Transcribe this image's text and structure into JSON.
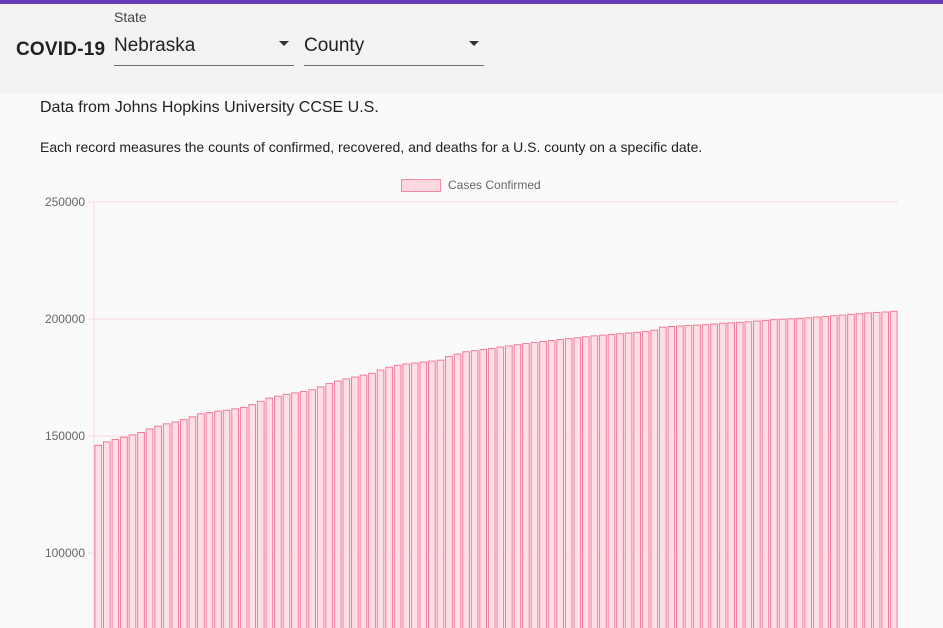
{
  "app": {
    "title": "COVID-19"
  },
  "filters": {
    "state": {
      "label": "State",
      "value": "Nebraska"
    },
    "county": {
      "value": "County"
    }
  },
  "content": {
    "source": "Data from Johns Hopkins University CCSE U.S.",
    "description": "Each record measures the counts of confirmed, recovered, and deaths for a U.S. county on a specific date."
  },
  "colors": {
    "accent": "#673ab7",
    "bar_fill": "#ffdfe5",
    "bar_stroke": "#f07b97",
    "grid": "#f8d8e0"
  },
  "chart_data": {
    "type": "bar",
    "legend": [
      "Cases Confirmed"
    ],
    "legend_position": "top-center",
    "grid": true,
    "y_ticks": [
      250000,
      200000,
      150000,
      100000
    ],
    "ylim": [
      70000,
      250000
    ],
    "series": [
      {
        "name": "Cases Confirmed",
        "values": [
          146000,
          147500,
          148500,
          149500,
          150500,
          151500,
          153000,
          154200,
          155200,
          156000,
          157000,
          158200,
          159500,
          160000,
          160600,
          161000,
          161600,
          162200,
          163400,
          164800,
          166200,
          167000,
          167800,
          168400,
          169000,
          169800,
          171000,
          172400,
          173500,
          174400,
          175200,
          176000,
          176800,
          178200,
          179400,
          180200,
          180800,
          181200,
          181600,
          182000,
          182400,
          184000,
          185000,
          186000,
          186500,
          187000,
          187400,
          188000,
          188500,
          189000,
          189500,
          190000,
          190400,
          190800,
          191200,
          191600,
          192000,
          192400,
          192800,
          193100,
          193400,
          193700,
          194000,
          194300,
          194700,
          195200,
          196500,
          196800,
          197000,
          197200,
          197400,
          197600,
          197900,
          198200,
          198400,
          198600,
          198800,
          199100,
          199400,
          199700,
          199900,
          200100,
          200300,
          200500,
          200800,
          201100,
          201400,
          201700,
          202000,
          202300,
          202600,
          202800,
          203000,
          203300
        ]
      }
    ]
  }
}
